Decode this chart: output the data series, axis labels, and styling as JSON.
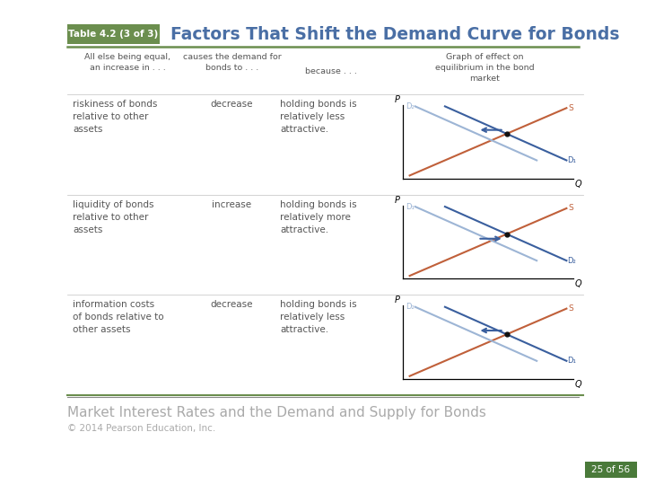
{
  "title": "Factors That Shift the Demand Curve for Bonds",
  "table_label": "Table 4.2 (3 of 3)",
  "header": [
    "All else being equal,\nan increase in . . .",
    "causes the demand for\nbonds to . . .",
    "because . . .",
    "Graph of effect on\nequilibrium in the bond\nmarket"
  ],
  "rows": [
    {
      "col1": "riskiness of bonds\nrelative to other\nassets",
      "col2": "decrease",
      "col3": "holding bonds is\nrelatively less\nattractive.",
      "graph_type": "decrease"
    },
    {
      "col1": "liquidity of bonds\nrelative to other\nassets",
      "col2": "increase",
      "col3": "holding bonds is\nrelatively more\nattractive.",
      "graph_type": "increase"
    },
    {
      "col1": "information costs\nof bonds relative to\nother assets",
      "col2": "decrease",
      "col3": "holding bonds is\nrelatively less\nattractive.",
      "graph_type": "decrease"
    }
  ],
  "footer_text": "Market Interest Rates and the Demand and Supply for Bonds",
  "copyright": "© 2014 Pearson Education, Inc.",
  "page": "25 of 56",
  "bg_color": "#ffffff",
  "header_bg": "#6b8e4e",
  "table_line_color": "#6b8e4e",
  "body_text_color": "#555555",
  "title_color": "#4a6fa5",
  "supply_color": "#c0603a",
  "demand1_color": "#3a5f9e",
  "demand2_color": "#9db5d5",
  "arrow_color": "#3a5f9e",
  "footer_color": "#aaaaaa",
  "page_badge_bg": "#4a7a3a",
  "page_badge_text": "#ffffff"
}
